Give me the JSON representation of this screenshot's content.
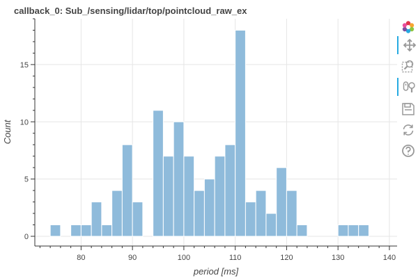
{
  "chart_data": {
    "type": "bar",
    "title": "callback_0: Sub_/sensing/lidar/top/pointcloud_raw_ex",
    "xlabel": "period [ms]",
    "ylabel": "Count",
    "xlim": [
      71,
      141.5
    ],
    "ylim": [
      -0.85,
      19
    ],
    "bin_width": 2,
    "x_ticks": [
      80,
      90,
      100,
      110,
      120,
      130,
      140
    ],
    "y_ticks": [
      0,
      5,
      10,
      15
    ],
    "bins": [
      {
        "x0": 74,
        "x1": 76,
        "count": 1
      },
      {
        "x0": 78,
        "x1": 80,
        "count": 1
      },
      {
        "x0": 80,
        "x1": 82,
        "count": 1
      },
      {
        "x0": 82,
        "x1": 84,
        "count": 3
      },
      {
        "x0": 84,
        "x1": 86,
        "count": 1
      },
      {
        "x0": 86,
        "x1": 88,
        "count": 4
      },
      {
        "x0": 88,
        "x1": 90,
        "count": 8
      },
      {
        "x0": 90,
        "x1": 92,
        "count": 3
      },
      {
        "x0": 94,
        "x1": 96,
        "count": 11
      },
      {
        "x0": 96,
        "x1": 98,
        "count": 7
      },
      {
        "x0": 98,
        "x1": 100,
        "count": 10
      },
      {
        "x0": 100,
        "x1": 102,
        "count": 7
      },
      {
        "x0": 102,
        "x1": 104,
        "count": 4
      },
      {
        "x0": 104,
        "x1": 106,
        "count": 5
      },
      {
        "x0": 106,
        "x1": 108,
        "count": 7
      },
      {
        "x0": 108,
        "x1": 110,
        "count": 8
      },
      {
        "x0": 110,
        "x1": 112,
        "count": 18
      },
      {
        "x0": 112,
        "x1": 114,
        "count": 3
      },
      {
        "x0": 114,
        "x1": 116,
        "count": 4
      },
      {
        "x0": 116,
        "x1": 118,
        "count": 2
      },
      {
        "x0": 118,
        "x1": 120,
        "count": 6
      },
      {
        "x0": 120,
        "x1": 122,
        "count": 4
      },
      {
        "x0": 122,
        "x1": 124,
        "count": 1
      },
      {
        "x0": 130,
        "x1": 132,
        "count": 1
      },
      {
        "x0": 132,
        "x1": 134,
        "count": 1
      },
      {
        "x0": 134,
        "x1": 136,
        "count": 1
      }
    ],
    "grid": true,
    "bar_color": "#8fbbdb",
    "bar_edge_color": "#ffffff",
    "grid_color": "#e5e5e5"
  },
  "toolbar": {
    "items": [
      {
        "name": "bokeh-logo-icon",
        "active": false
      },
      {
        "name": "pan-icon",
        "active": true
      },
      {
        "name": "box-zoom-icon",
        "active": false
      },
      {
        "name": "wheel-zoom-icon",
        "active": true
      },
      {
        "name": "save-icon",
        "active": false
      },
      {
        "name": "reset-icon",
        "active": false
      },
      {
        "name": "help-icon",
        "active": false
      }
    ]
  }
}
